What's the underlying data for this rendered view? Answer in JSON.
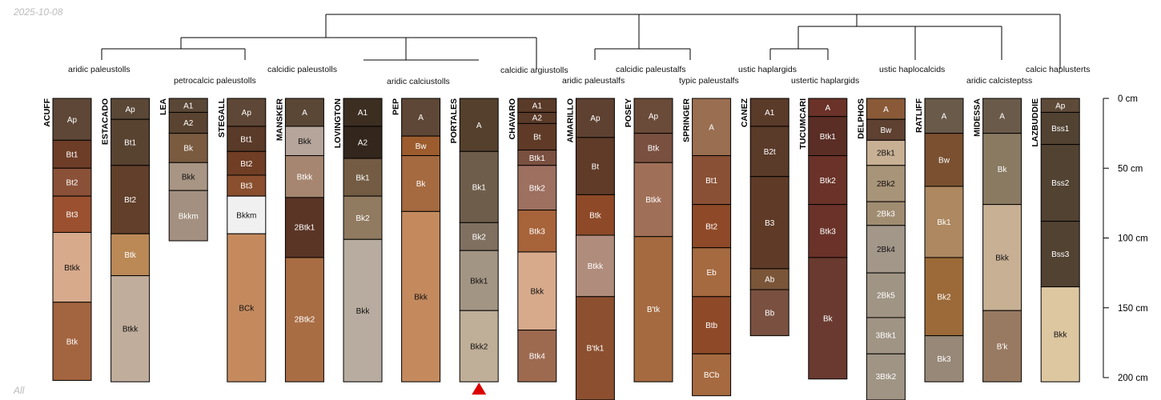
{
  "date": "2025-10-08",
  "footer_label": "All",
  "max_depth_cm": 200,
  "depth_axis": {
    "ticks": [
      0,
      50,
      100,
      150,
      200
    ],
    "unit": "cm"
  },
  "taxon_labels": [
    "aridic paleustolls",
    "petrocalcic paleustolls",
    "calcidic paleustolls",
    "aridic calciustolls",
    "calcidic argiustolls",
    "aridic paleustalfs",
    "calcidic paleustalfs",
    "typic paleustalfs",
    "ustic haplargids",
    "ustertic haplargids",
    "ustic haplocalcids",
    "aridic calcisteptss",
    "calcic haplusterts"
  ],
  "profiles": [
    {
      "name": "ACUFF",
      "horizons": [
        {
          "name": "Ap",
          "top": 0,
          "bottom": 30,
          "color": "#5e4736"
        },
        {
          "name": "Bt1",
          "top": 30,
          "bottom": 50,
          "color": "#6e3d27"
        },
        {
          "name": "Bt2",
          "top": 50,
          "bottom": 70,
          "color": "#8b5138"
        },
        {
          "name": "Bt3",
          "top": 70,
          "bottom": 96,
          "color": "#9b5130"
        },
        {
          "name": "Btkk",
          "top": 96,
          "bottom": 146,
          "color": "#d7aa8c"
        },
        {
          "name": "Btk",
          "top": 146,
          "bottom": 202,
          "color": "#a3653f"
        }
      ]
    },
    {
      "name": "ESTACADO",
      "horizons": [
        {
          "name": "Ap",
          "top": 0,
          "bottom": 15,
          "color": "#5a4736"
        },
        {
          "name": "Bt1",
          "top": 15,
          "bottom": 48,
          "color": "#584230"
        },
        {
          "name": "Bt2",
          "top": 48,
          "bottom": 97,
          "color": "#613f2a"
        },
        {
          "name": "Btk",
          "top": 97,
          "bottom": 127,
          "color": "#bb8956"
        },
        {
          "name": "Btkk",
          "top": 127,
          "bottom": 203,
          "color": "#c0ad9b"
        }
      ]
    },
    {
      "name": "LEA",
      "horizons": [
        {
          "name": "A1",
          "top": 0,
          "bottom": 10,
          "color": "#5a4736"
        },
        {
          "name": "A2",
          "top": 10,
          "bottom": 25,
          "color": "#5a4431"
        },
        {
          "name": "Bk",
          "top": 25,
          "bottom": 46,
          "color": "#7a5b40"
        },
        {
          "name": "Bkk",
          "top": 46,
          "bottom": 66,
          "color": "#a89584"
        },
        {
          "name": "Bkkm",
          "top": 66,
          "bottom": 102,
          "color": "#a39080"
        }
      ]
    },
    {
      "name": "STEGALL",
      "horizons": [
        {
          "name": "Ap",
          "top": 0,
          "bottom": 20,
          "color": "#5e4736"
        },
        {
          "name": "Bt1",
          "top": 20,
          "bottom": 38,
          "color": "#5a3a28"
        },
        {
          "name": "Bt2",
          "top": 38,
          "bottom": 55,
          "color": "#6f3e25"
        },
        {
          "name": "Bt3",
          "top": 55,
          "bottom": 70,
          "color": "#8a4f2e"
        },
        {
          "name": "Bkkm",
          "top": 70,
          "bottom": 97,
          "color": "#f0f0f0"
        },
        {
          "name": "BCk",
          "top": 97,
          "bottom": 203,
          "color": "#c48a5e"
        }
      ]
    },
    {
      "name": "MANSKER",
      "horizons": [
        {
          "name": "A",
          "top": 0,
          "bottom": 20,
          "color": "#5a4736"
        },
        {
          "name": "Bkk",
          "top": 20,
          "bottom": 41,
          "color": "#b6a59a"
        },
        {
          "name": "Btkk",
          "top": 41,
          "bottom": 71,
          "color": "#a68670"
        },
        {
          "name": "2Btk1",
          "top": 71,
          "bottom": 114,
          "color": "#5a3526"
        },
        {
          "name": "2Btk2",
          "top": 114,
          "bottom": 203,
          "color": "#a96d44"
        }
      ]
    },
    {
      "name": "LOVINGTON",
      "horizons": [
        {
          "name": "A1",
          "top": 0,
          "bottom": 20,
          "color": "#3d2e22"
        },
        {
          "name": "A2",
          "top": 20,
          "bottom": 43,
          "color": "#33261c"
        },
        {
          "name": "Bk1",
          "top": 43,
          "bottom": 70,
          "color": "#735c43"
        },
        {
          "name": "Bk2",
          "top": 70,
          "bottom": 101,
          "color": "#907a60"
        },
        {
          "name": "Bkk",
          "top": 101,
          "bottom": 203,
          "color": "#b7ac9f"
        }
      ]
    },
    {
      "name": "PEP",
      "horizons": [
        {
          "name": "A",
          "top": 0,
          "bottom": 27,
          "color": "#5e4736"
        },
        {
          "name": "Bw",
          "top": 27,
          "bottom": 41,
          "color": "#9c5c2e"
        },
        {
          "name": "Bk",
          "top": 41,
          "bottom": 81,
          "color": "#a56a40"
        },
        {
          "name": "Bkk",
          "top": 81,
          "bottom": 203,
          "color": "#c48a5e"
        }
      ]
    },
    {
      "name": "PORTALES",
      "truncated": true,
      "horizons": [
        {
          "name": "A",
          "top": 0,
          "bottom": 38,
          "color": "#54402d"
        },
        {
          "name": "Bk1",
          "top": 38,
          "bottom": 89,
          "color": "#6f5d4b"
        },
        {
          "name": "Bk2",
          "top": 89,
          "bottom": 109,
          "color": "#807060"
        },
        {
          "name": "Bkk1",
          "top": 109,
          "bottom": 152,
          "color": "#a39584"
        },
        {
          "name": "Bkk2",
          "top": 152,
          "bottom": 203,
          "color": "#bfae98"
        }
      ]
    },
    {
      "name": "CHAVARO",
      "horizons": [
        {
          "name": "A1",
          "top": 0,
          "bottom": 10,
          "color": "#5a3a28"
        },
        {
          "name": "A2",
          "top": 10,
          "bottom": 18,
          "color": "#5a3a28"
        },
        {
          "name": "Bt",
          "top": 18,
          "bottom": 37,
          "color": "#5f3b27"
        },
        {
          "name": "Btk1",
          "top": 37,
          "bottom": 48,
          "color": "#7a5040"
        },
        {
          "name": "Btk2",
          "top": 48,
          "bottom": 80,
          "color": "#9d7060"
        },
        {
          "name": "Btk3",
          "top": 80,
          "bottom": 110,
          "color": "#a7633a"
        },
        {
          "name": "Bkk",
          "top": 110,
          "bottom": 166,
          "color": "#d7aa8c"
        },
        {
          "name": "Btk4",
          "top": 166,
          "bottom": 203,
          "color": "#9d6a50"
        }
      ]
    },
    {
      "name": "AMARILLO",
      "horizons": [
        {
          "name": "Ap",
          "top": 0,
          "bottom": 28,
          "color": "#5e4131"
        },
        {
          "name": "Bt",
          "top": 28,
          "bottom": 69,
          "color": "#5f3b28"
        },
        {
          "name": "Btk",
          "top": 69,
          "bottom": 98,
          "color": "#8e4a28"
        },
        {
          "name": "Btkk",
          "top": 98,
          "bottom": 142,
          "color": "#b08c7c"
        },
        {
          "name": "B'tk1",
          "top": 142,
          "bottom": 216,
          "color": "#8c5030"
        }
      ]
    },
    {
      "name": "POSEY",
      "horizons": [
        {
          "name": "Ap",
          "top": 0,
          "bottom": 25,
          "color": "#6a4a38"
        },
        {
          "name": "Btk",
          "top": 25,
          "bottom": 46,
          "color": "#7a5040"
        },
        {
          "name": "Btkk",
          "top": 46,
          "bottom": 99,
          "color": "#a06f58"
        },
        {
          "name": "B'tk",
          "top": 99,
          "bottom": 203,
          "color": "#a56a40"
        }
      ]
    },
    {
      "name": "SPRINGER",
      "horizons": [
        {
          "name": "A",
          "top": 0,
          "bottom": 41,
          "color": "#9a6e50"
        },
        {
          "name": "Bt1",
          "top": 41,
          "bottom": 76,
          "color": "#8a5035"
        },
        {
          "name": "Bt2",
          "top": 76,
          "bottom": 107,
          "color": "#8e4a28"
        },
        {
          "name": "Eb",
          "top": 107,
          "bottom": 142,
          "color": "#a56a40"
        },
        {
          "name": "Btb",
          "top": 142,
          "bottom": 183,
          "color": "#8e4a28"
        },
        {
          "name": "BCb",
          "top": 183,
          "bottom": 213,
          "color": "#a56a40"
        }
      ]
    },
    {
      "name": "CANEZ",
      "horizons": [
        {
          "name": "A1",
          "top": 0,
          "bottom": 20,
          "color": "#5a3a28"
        },
        {
          "name": "B2t",
          "top": 20,
          "bottom": 56,
          "color": "#5a3a28"
        },
        {
          "name": "B3",
          "top": 56,
          "bottom": 122,
          "color": "#5f3b27"
        },
        {
          "name": "Ab",
          "top": 122,
          "bottom": 137,
          "color": "#7a5538"
        },
        {
          "name": "Bb",
          "top": 137,
          "bottom": 170,
          "color": "#7a5040"
        }
      ]
    },
    {
      "name": "TUCUMCARI",
      "horizons": [
        {
          "name": "A",
          "top": 0,
          "bottom": 13,
          "color": "#6a3228"
        },
        {
          "name": "Btk1",
          "top": 13,
          "bottom": 41,
          "color": "#5a2e25"
        },
        {
          "name": "Btk2",
          "top": 41,
          "bottom": 76,
          "color": "#6a3228"
        },
        {
          "name": "Btk3",
          "top": 76,
          "bottom": 114,
          "color": "#6a3228"
        },
        {
          "name": "Bk",
          "top": 114,
          "bottom": 201,
          "color": "#6a3a30"
        }
      ]
    },
    {
      "name": "DELPHOS",
      "horizons": [
        {
          "name": "A",
          "top": 0,
          "bottom": 15,
          "color": "#8a5a38"
        },
        {
          "name": "Bw",
          "top": 15,
          "bottom": 30,
          "color": "#5e4131"
        },
        {
          "name": "2Bk1",
          "top": 30,
          "bottom": 48,
          "color": "#c8b094"
        },
        {
          "name": "2Bk2",
          "top": 48,
          "bottom": 74,
          "color": "#a89478"
        },
        {
          "name": "2Bk3",
          "top": 74,
          "bottom": 91,
          "color": "#a08c70"
        },
        {
          "name": "2Bk4",
          "top": 91,
          "bottom": 125,
          "color": "#a3978a"
        },
        {
          "name": "2Bk5",
          "top": 125,
          "bottom": 157,
          "color": "#a09484"
        },
        {
          "name": "3Btk1",
          "top": 157,
          "bottom": 183,
          "color": "#a09484"
        },
        {
          "name": "3Btk2",
          "top": 183,
          "bottom": 216,
          "color": "#a09484"
        }
      ]
    },
    {
      "name": "RATLIFF",
      "horizons": [
        {
          "name": "A",
          "top": 0,
          "bottom": 25,
          "color": "#6a5a4a"
        },
        {
          "name": "Bw",
          "top": 25,
          "bottom": 63,
          "color": "#7a5030"
        },
        {
          "name": "Bk1",
          "top": 63,
          "bottom": 114,
          "color": "#ad8860"
        },
        {
          "name": "Bk2",
          "top": 114,
          "bottom": 170,
          "color": "#9c6a38"
        },
        {
          "name": "Bk3",
          "top": 170,
          "bottom": 203,
          "color": "#988878"
        }
      ]
    },
    {
      "name": "MIDESSA",
      "horizons": [
        {
          "name": "A",
          "top": 0,
          "bottom": 25,
          "color": "#6a5a4a"
        },
        {
          "name": "Bk",
          "top": 25,
          "bottom": 76,
          "color": "#8a7a62"
        },
        {
          "name": "Bkk",
          "top": 76,
          "bottom": 152,
          "color": "#c8b094"
        },
        {
          "name": "B'k",
          "top": 152,
          "bottom": 203,
          "color": "#987a62"
        }
      ]
    },
    {
      "name": "LAZBUDDIE",
      "horizons": [
        {
          "name": "Ap",
          "top": 0,
          "bottom": 10,
          "color": "#5e4a38"
        },
        {
          "name": "Bss1",
          "top": 10,
          "bottom": 33,
          "color": "#524232"
        },
        {
          "name": "Bss2",
          "top": 33,
          "bottom": 88,
          "color": "#524232"
        },
        {
          "name": "Bss3",
          "top": 88,
          "bottom": 135,
          "color": "#524232"
        },
        {
          "name": "Bkk",
          "top": 135,
          "bottom": 203,
          "color": "#ddc7a0"
        }
      ]
    }
  ],
  "colors": {
    "profile_border": "#000000",
    "label_dark_bg": "#ffffff",
    "label_light_bg": "#111111",
    "truncation_marker": "#dd0000"
  }
}
